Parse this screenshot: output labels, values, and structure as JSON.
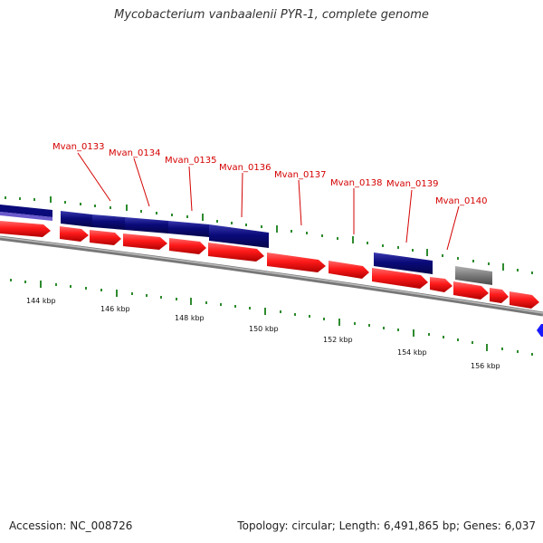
{
  "title": "Mycobacterium vanbaalenii PYR-1, complete genome",
  "footer": {
    "accession": "Accession: NC_008726",
    "summary": "Topology: circular; Length: 6,491,865 bp; Genes: 6,037"
  },
  "colors": {
    "forward_cds": "#ff1a1a",
    "reverse_cds": "#0a0a7a",
    "reverse_cds_light": "#6a5acd",
    "other_feature": "#7a7a7a",
    "label": "#d40000",
    "ticks": "#2e8b2e",
    "backbone": "#8a8a8a",
    "marker": "#1a1aff"
  },
  "gene_labels": [
    "Mvan_0133",
    "Mvan_0134",
    "Mvan_0135",
    "Mvan_0136",
    "Mvan_0137",
    "Mvan_0138",
    "Mvan_0139",
    "Mvan_0140"
  ],
  "kbp_labels": [
    "144 kbp",
    "146 kbp",
    "148 kbp",
    "150 kbp",
    "152 kbp",
    "154 kbp",
    "156 kbp"
  ]
}
